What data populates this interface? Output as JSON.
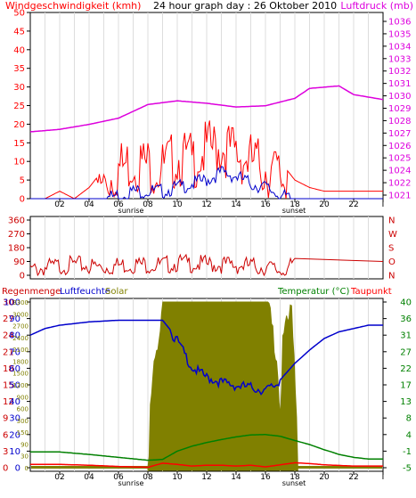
{
  "header": {
    "left_label": "Windgeschwindigkeit (kmh)",
    "center_label": "24 hour graph day : 26 Oktober 2010",
    "right_label": "Luftdruck (mb)"
  },
  "hour_labels": [
    "02",
    "04",
    "06",
    "08",
    "10",
    "12",
    "14",
    "16",
    "18",
    "20",
    "22",
    "I"
  ],
  "sunrise_label": "sunrise",
  "sunset_label": "sunset",
  "colors": {
    "wind": "#ff0000",
    "gust": "#0000cc",
    "pressure": "#dd00dd",
    "direction": "#cc0000",
    "humidity": "#0000cc",
    "solar": "#808000",
    "temperature": "#008000",
    "dewpoint": "#ff0000",
    "rain": "#cc0000",
    "grid": "#dddddd"
  },
  "chart_data": [
    {
      "type": "line",
      "panel": "wind-pressure",
      "x_unit": "hour",
      "xlim": [
        0,
        24
      ],
      "y_left": {
        "label": "Windgeschwindigkeit (kmh)",
        "ticks": [
          0,
          5,
          10,
          15,
          20,
          25,
          30,
          35,
          40,
          45,
          50
        ],
        "lim": [
          0,
          50
        ]
      },
      "y_right": {
        "label": "Luftdruck (mb)",
        "ticks": [
          1021,
          1022,
          1024,
          1025,
          1026,
          1027,
          1028,
          1029,
          1030,
          1031,
          1032,
          1033,
          1034,
          1035,
          1036
        ]
      },
      "wind_series": {
        "x": [
          0,
          1,
          2,
          3,
          4,
          5,
          6,
          7,
          8,
          9,
          10,
          11,
          12,
          13,
          14,
          15,
          16,
          17,
          18,
          19,
          20,
          21,
          22,
          23,
          24
        ],
        "values": [
          0,
          0,
          2,
          0,
          3,
          8,
          12,
          14,
          13,
          12,
          15,
          14,
          17,
          18,
          16,
          14,
          12,
          10,
          5,
          3,
          2,
          2,
          2,
          2,
          2
        ]
      },
      "gust_series": {
        "x": [
          0,
          1,
          2,
          3,
          4,
          5,
          6,
          7,
          8,
          9,
          10,
          11,
          12,
          13,
          14,
          15,
          16,
          17,
          18,
          19,
          20,
          21,
          22,
          23,
          24
        ],
        "values": [
          0,
          0,
          0,
          0,
          0,
          1,
          2,
          3,
          3,
          3,
          4,
          5,
          6,
          8,
          7,
          5,
          4,
          2,
          0,
          0,
          0,
          0,
          0,
          0,
          0
        ]
      },
      "pressure_series": {
        "x": [
          0,
          2,
          4,
          6,
          8,
          10,
          12,
          14,
          16,
          18,
          19,
          20,
          21,
          22,
          23,
          24
        ],
        "values": [
          1027.1,
          1027.3,
          1027.7,
          1028.2,
          1029.3,
          1029.6,
          1029.4,
          1029.1,
          1029.2,
          1029.8,
          1030.6,
          1030.7,
          1030.8,
          1030.1,
          1029.9,
          1029.7
        ]
      }
    },
    {
      "type": "scatter",
      "panel": "direction",
      "x_unit": "hour",
      "xlim": [
        0,
        24
      ],
      "y_left": {
        "ticks": [
          0,
          90,
          180,
          270,
          360
        ],
        "lim": [
          0,
          360
        ]
      },
      "y_right": {
        "ticks": [
          "N",
          "W",
          "S",
          "O",
          "N"
        ]
      },
      "x": [
        0,
        1,
        2,
        3,
        4,
        5,
        6,
        7,
        8,
        9,
        10,
        11,
        12,
        13,
        14,
        15,
        16,
        17,
        18,
        24
      ],
      "values": [
        60,
        80,
        90,
        100,
        90,
        80,
        95,
        100,
        100,
        95,
        110,
        105,
        100,
        100,
        95,
        90,
        80,
        60,
        90,
        90
      ]
    },
    {
      "type": "line",
      "panel": "humidity-temperature",
      "x_unit": "hour",
      "xlim": [
        0,
        24
      ],
      "y_left": {
        "labels": [
          "Regenmenge",
          "Luftfeuchte",
          "Solar"
        ],
        "humidity_ticks": [
          0,
          10,
          20,
          30,
          40,
          50,
          60,
          70,
          80,
          90,
          100
        ],
        "solar_ticks": [
          0,
          30,
          90,
          150,
          300,
          600,
          900,
          1200,
          1500,
          1800,
          2100,
          2400,
          2700,
          3000,
          3300
        ],
        "rain_ticks": [
          0,
          3,
          6,
          9,
          12,
          15,
          18,
          21,
          24,
          27,
          30
        ]
      },
      "y_right": {
        "labels": [
          "Temperatur (°C)",
          "Taupunkt"
        ],
        "ticks": [
          -5,
          -1,
          4,
          8,
          13,
          17,
          22,
          27,
          31,
          36,
          40
        ]
      },
      "humidity_series": {
        "x": [
          0,
          1,
          2,
          3,
          4,
          6,
          8,
          9,
          10,
          11,
          12,
          13,
          14,
          15,
          16,
          17,
          18,
          19,
          20,
          21,
          22,
          23,
          24
        ],
        "values": [
          80,
          84,
          86,
          87,
          88,
          89,
          89,
          89,
          78,
          62,
          56,
          53,
          51,
          50,
          48,
          53,
          63,
          71,
          78,
          82,
          84,
          86,
          86
        ]
      },
      "temperature_series": {
        "x": [
          0,
          2,
          4,
          6,
          8,
          9,
          10,
          11,
          12,
          13,
          14,
          15,
          16,
          17,
          18,
          19,
          20,
          21,
          22,
          23,
          24
        ],
        "values": [
          -1.2,
          -1.2,
          -1.8,
          -2.5,
          -3.2,
          -3.0,
          -1.0,
          0.5,
          1.6,
          2.5,
          3.3,
          3.9,
          4.0,
          3.5,
          2.2,
          1.0,
          -0.6,
          -1.8,
          -2.5,
          -2.9,
          -2.9
        ]
      },
      "dewpoint_series": {
        "x": [
          0,
          2,
          4,
          6,
          8,
          9,
          10,
          11,
          12,
          13,
          14,
          15,
          16,
          17,
          18,
          19,
          20,
          22,
          24
        ],
        "values": [
          -4.2,
          -4.2,
          -4.4,
          -4.7,
          -4.9,
          -3.9,
          -4.2,
          -4.6,
          -4.4,
          -4.4,
          -4.6,
          -4.4,
          -4.8,
          -4.3,
          -3.8,
          -4.0,
          -4.3,
          -4.6,
          -4.6
        ]
      },
      "solar_series": {
        "x": [
          8.0,
          8.2,
          8.5,
          8.8,
          9.0,
          9.5,
          10,
          12,
          14,
          16,
          16.2,
          16.8,
          17.0,
          17.2,
          17.8,
          18.2
        ],
        "values": [
          0,
          1000,
          1900,
          2300,
          3300,
          3300,
          3300,
          3300,
          3300,
          3300,
          3300,
          2000,
          500,
          2500,
          3300,
          0
        ]
      },
      "rain_baseline": {
        "x": [
          0,
          24
        ],
        "values": [
          0,
          0
        ]
      }
    }
  ]
}
